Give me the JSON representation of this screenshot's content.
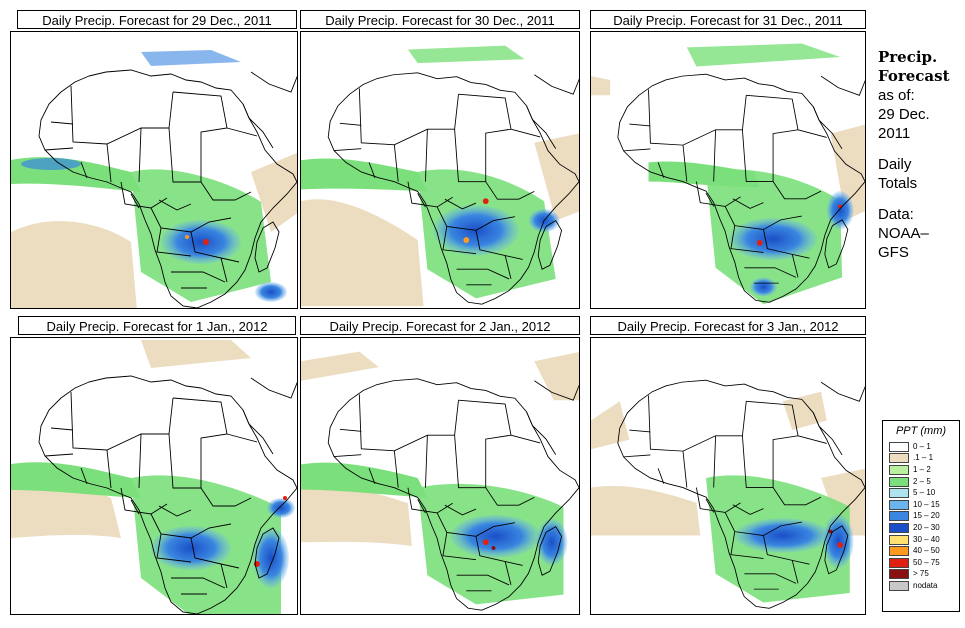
{
  "panels": [
    {
      "title": "Daily Precip. Forecast for  29 Dec., 2011"
    },
    {
      "title": "Daily Precip. Forecast for  30 Dec., 2011"
    },
    {
      "title": "Daily Precip. Forecast for  31 Dec., 2011"
    },
    {
      "title": "Daily Precip. Forecast for  1 Jan., 2012"
    },
    {
      "title": "Daily Precip. Forecast for  2 Jan., 2012"
    },
    {
      "title": "Daily Precip. Forecast for  3 Jan., 2012"
    }
  ],
  "side": {
    "title1": "Precip.",
    "title2": "Forecast",
    "asof1": "as of:",
    "asof2": "29 Dec.",
    "asof3": "2011",
    "daily1": "Daily",
    "daily2": "Totals",
    "data1": "Data:",
    "data2": "NOAA–",
    "data3": "GFS"
  },
  "legend": {
    "title": "PPT (mm)",
    "items": [
      {
        "label": "0 – 1",
        "color": "#ffffff"
      },
      {
        "label": ".1 – 1",
        "color": "#ecdcc0"
      },
      {
        "label": "1 – 2",
        "color": "#b8f0a0"
      },
      {
        "label": "2 – 5",
        "color": "#7be07b"
      },
      {
        "label": "5 – 10",
        "color": "#aee3f0"
      },
      {
        "label": "10 – 15",
        "color": "#6bb4ee"
      },
      {
        "label": "15 – 20",
        "color": "#3a86e0"
      },
      {
        "label": "20 – 30",
        "color": "#1a4fc8"
      },
      {
        "label": "30 – 40",
        "color": "#ffe070"
      },
      {
        "label": "40 – 50",
        "color": "#ff9a20"
      },
      {
        "label": "50 – 75",
        "color": "#e02010"
      },
      {
        "label": "> 75",
        "color": "#8a1010"
      },
      {
        "label": "nodata",
        "color": "#c8c8c8"
      }
    ]
  }
}
